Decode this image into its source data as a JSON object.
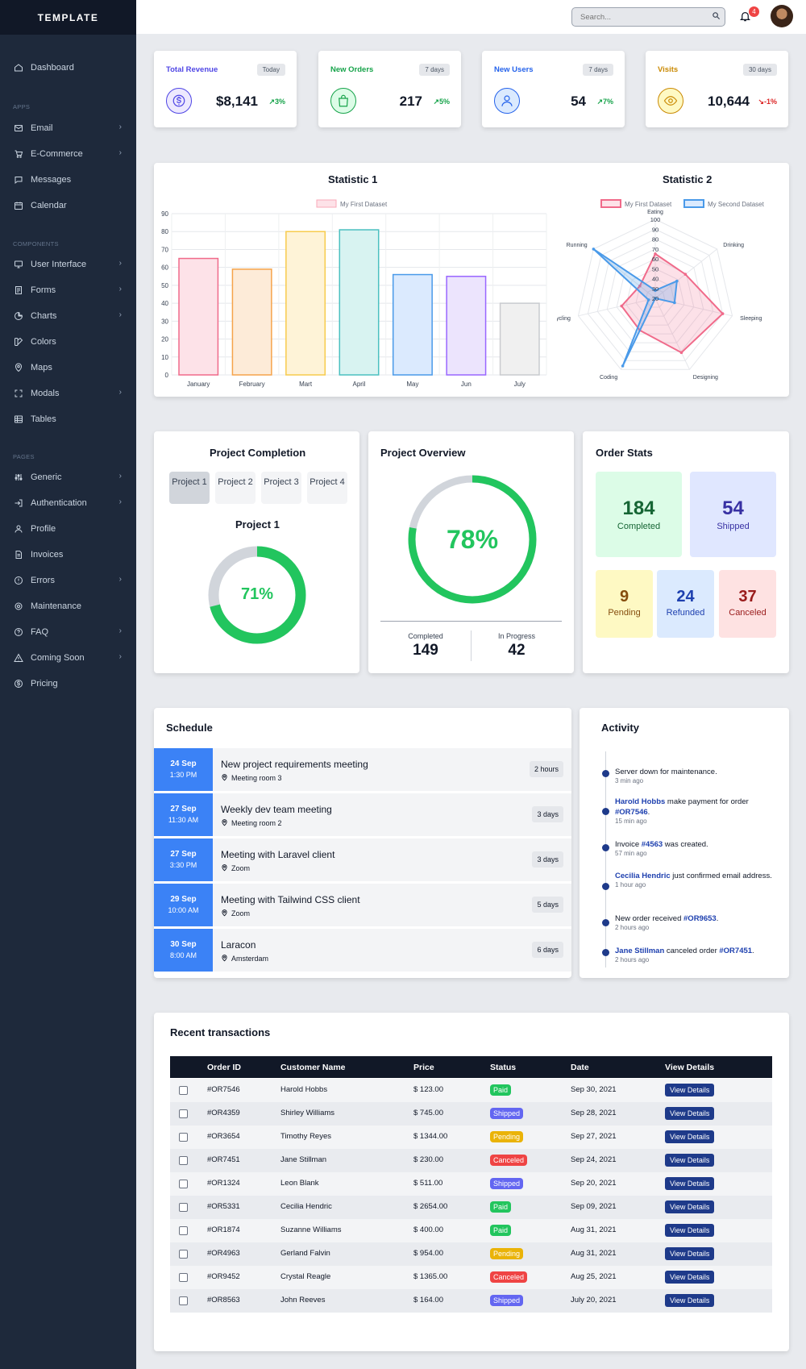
{
  "brand": "TEMPLATE",
  "sidebar": {
    "dashboard": "Dashboard",
    "sec_apps": "APPS",
    "apps": [
      "Email",
      "E-Commerce",
      "Messages",
      "Calendar"
    ],
    "sec_components": "COMPONENTS",
    "components": [
      "User Interface",
      "Forms",
      "Charts",
      "Colors",
      "Maps",
      "Modals",
      "Tables"
    ],
    "sec_pages": "PAGES",
    "pages": [
      "Generic",
      "Authentication",
      "Profile",
      "Invoices",
      "Errors",
      "Maintenance",
      "FAQ",
      "Coming Soon",
      "Pricing"
    ]
  },
  "header": {
    "search_placeholder": "Search...",
    "notifications": "4"
  },
  "kpis": [
    {
      "title": "Total Revenue",
      "period": "Today",
      "value": "$8,141",
      "change": "3%",
      "color": "#4f46e5",
      "icon": "dollar-icon"
    },
    {
      "title": "New Orders",
      "period": "7 days",
      "value": "217",
      "change": "5%",
      "color": "#16a34a",
      "icon": "shopping-bag-icon"
    },
    {
      "title": "New Users",
      "period": "7 days",
      "value": "54",
      "change": "7%",
      "color": "#2563eb",
      "icon": "user-icon"
    },
    {
      "title": "Visits",
      "period": "30 days",
      "value": "10,644",
      "change": "-1%",
      "color": "#ca8a04",
      "icon": "eye-icon"
    }
  ],
  "chart_data": [
    {
      "type": "bar",
      "title": "Statistic 1",
      "legend": [
        "My First Dataset"
      ],
      "categories": [
        "January",
        "February",
        "Mart",
        "April",
        "May",
        "Jun",
        "July"
      ],
      "values": [
        65,
        59,
        80,
        81,
        56,
        55,
        40
      ],
      "ylim": [
        0,
        90
      ],
      "yticks": [
        0,
        10,
        20,
        30,
        40,
        50,
        60,
        70,
        80,
        90
      ]
    },
    {
      "type": "radar",
      "title": "Statistic 2",
      "axes": [
        "Eating",
        "Drinking",
        "Sleeping",
        "Designing",
        "Coding",
        "Cycling",
        "Running"
      ],
      "rticks": [
        20,
        30,
        40,
        50,
        60,
        70,
        80,
        90,
        100
      ],
      "rlim": [
        20,
        100
      ],
      "series": [
        {
          "name": "My First Dataset",
          "values": [
            65,
            59,
            90,
            81,
            56,
            55,
            40
          ]
        },
        {
          "name": "My Second Dataset",
          "values": [
            28,
            48,
            40,
            19,
            96,
            27,
            100
          ]
        }
      ]
    }
  ],
  "project_completion": {
    "title": "Project Completion",
    "tabs": [
      "Project 1",
      "Project 2",
      "Project 3",
      "Project 4"
    ],
    "selected_title": "Project 1",
    "percent": "71%",
    "fraction": 0.71
  },
  "project_overview": {
    "title": "Project Overview",
    "percent": "78%",
    "fraction": 0.78,
    "completed_label": "Completed",
    "completed": "149",
    "progress_label": "In Progress",
    "progress": "42"
  },
  "order_stats": {
    "title": "Order Stats",
    "completed": "184",
    "completed_label": "Completed",
    "shipped": "54",
    "shipped_label": "Shipped",
    "pending": "9",
    "pending_label": "Pending",
    "refunded": "24",
    "refunded_label": "Refunded",
    "canceled": "37",
    "canceled_label": "Canceled"
  },
  "schedule": {
    "title": "Schedule",
    "items": [
      {
        "date": "24 Sep",
        "time": "1:30 PM",
        "title": "New project requirements meeting",
        "location": "Meeting room 3",
        "duration": "2 hours"
      },
      {
        "date": "27 Sep",
        "time": "11:30 AM",
        "title": "Weekly dev team meeting",
        "location": "Meeting room 2",
        "duration": "3 days"
      },
      {
        "date": "27 Sep",
        "time": "3:30 PM",
        "title": "Meeting with Laravel client",
        "location": "Zoom",
        "duration": "3 days"
      },
      {
        "date": "29 Sep",
        "time": "10:00 AM",
        "title": "Meeting with Tailwind CSS client",
        "location": "Zoom",
        "duration": "5 days"
      },
      {
        "date": "30 Sep",
        "time": "8:00 AM",
        "title": "Laracon",
        "location": "Amsterdam",
        "duration": "6 days"
      }
    ]
  },
  "activity": {
    "title": "Activity",
    "items": [
      {
        "pre": "Server down for maintenance.",
        "link": "",
        "mid": "",
        "link2": "",
        "post": "",
        "time": "3 min ago"
      },
      {
        "pre": "",
        "link": "Harold Hobbs",
        "mid": " make payment for order ",
        "link2": "#OR7546",
        "post": ".",
        "time": "15 min ago"
      },
      {
        "pre": "Invoice ",
        "link": "#4563",
        "mid": " was created.",
        "link2": "",
        "post": "",
        "time": "57 min ago"
      },
      {
        "pre": "",
        "link": "Cecilia Hendric",
        "mid": " just confirmed email address.",
        "link2": "",
        "post": "",
        "time": "1 hour ago"
      },
      {
        "pre": "New order received ",
        "link": "#OR9653",
        "mid": ".",
        "link2": "",
        "post": "",
        "time": "2 hours ago"
      },
      {
        "pre": "",
        "link": "Jane Stillman",
        "mid": " canceled order ",
        "link2": "#OR7451",
        "post": ".",
        "time": "2 hours ago"
      }
    ]
  },
  "transactions": {
    "title": "Recent transactions",
    "headers": [
      "Order ID",
      "Customer Name",
      "Price",
      "Status",
      "Date",
      "View Details"
    ],
    "button": "View Details",
    "status_colors": {
      "Paid": "#22c55e",
      "Shipped": "#6366f1",
      "Pending": "#eab308",
      "Canceled": "#ef4444"
    },
    "rows": [
      {
        "id": "#OR7546",
        "name": "Harold Hobbs",
        "price": "$ 123.00",
        "status": "Paid",
        "date": "Sep 30, 2021"
      },
      {
        "id": "#OR4359",
        "name": "Shirley Williams",
        "price": "$ 745.00",
        "status": "Shipped",
        "date": "Sep 28, 2021"
      },
      {
        "id": "#OR3654",
        "name": "Timothy Reyes",
        "price": "$ 1344.00",
        "status": "Pending",
        "date": "Sep 27, 2021"
      },
      {
        "id": "#OR7451",
        "name": "Jane Stillman",
        "price": "$ 230.00",
        "status": "Canceled",
        "date": "Sep 24, 2021"
      },
      {
        "id": "#OR1324",
        "name": "Leon Blank",
        "price": "$ 511.00",
        "status": "Shipped",
        "date": "Sep 20, 2021"
      },
      {
        "id": "#OR5331",
        "name": "Cecilia Hendric",
        "price": "$ 2654.00",
        "status": "Paid",
        "date": "Sep 09, 2021"
      },
      {
        "id": "#OR1874",
        "name": "Suzanne Williams",
        "price": "$ 400.00",
        "status": "Paid",
        "date": "Aug 31, 2021"
      },
      {
        "id": "#OR4963",
        "name": "Gerland Falvin",
        "price": "$ 954.00",
        "status": "Pending",
        "date": "Aug 31, 2021"
      },
      {
        "id": "#OR9452",
        "name": "Crystal Reagle",
        "price": "$ 1365.00",
        "status": "Canceled",
        "date": "Aug 25, 2021"
      },
      {
        "id": "#OR8563",
        "name": "John Reeves",
        "price": "$ 164.00",
        "status": "Shipped",
        "date": "July 20, 2021"
      }
    ]
  }
}
